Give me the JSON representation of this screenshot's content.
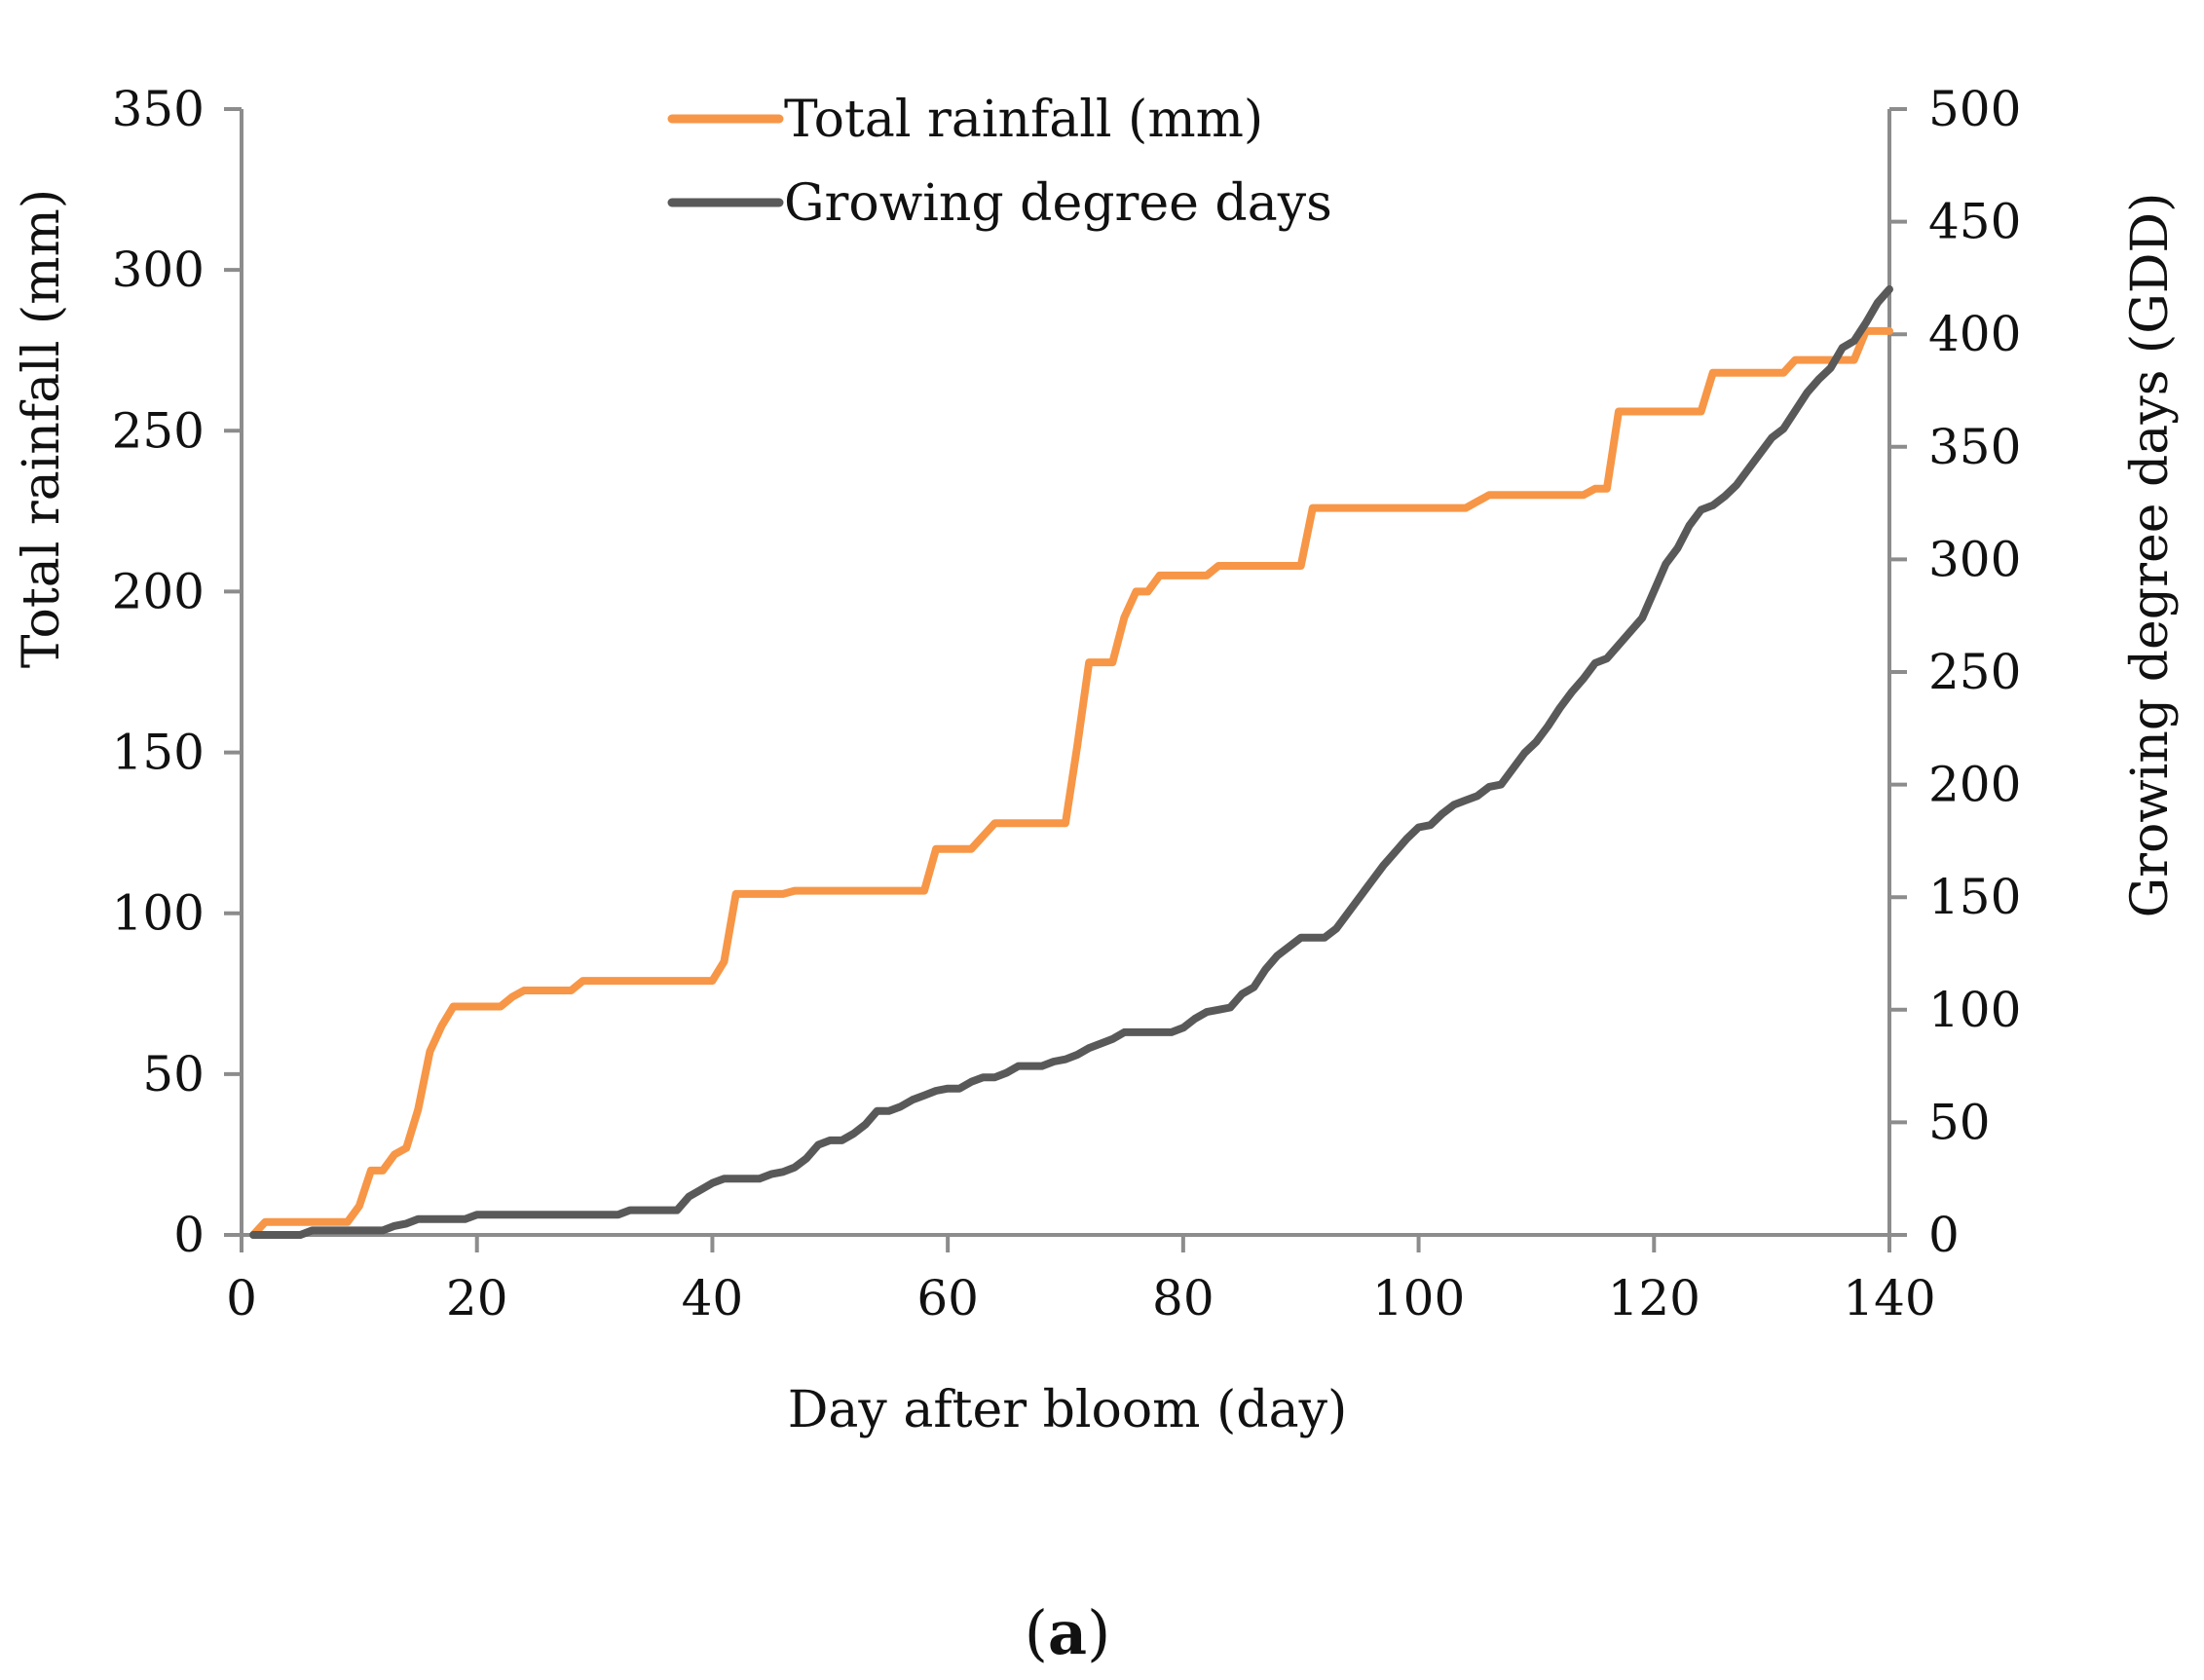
{
  "chart_data": {
    "type": "line",
    "xlabel": "Day after bloom (day)",
    "y1label": "Total rainfall (mm)",
    "y2label": "Growing degree days (GDD)",
    "xlim": [
      0,
      140
    ],
    "y1lim": [
      0,
      350
    ],
    "y2lim": [
      0,
      500
    ],
    "xticks": [
      0,
      20,
      40,
      60,
      80,
      100,
      120,
      140
    ],
    "y1ticks": [
      0,
      50,
      100,
      150,
      200,
      250,
      300,
      350
    ],
    "y2ticks": [
      0,
      50,
      100,
      150,
      200,
      250,
      300,
      350,
      400,
      450,
      500
    ],
    "grid": false,
    "legend": "top-center",
    "caption": {
      "open": "(",
      "letter": "a",
      "close": ")"
    },
    "series": [
      {
        "name": "Total rainfall (mm)",
        "axis": "left",
        "color": "#F79646",
        "points": [
          [
            1,
            0
          ],
          [
            2,
            4
          ],
          [
            3,
            4
          ],
          [
            9,
            4
          ],
          [
            10,
            9
          ],
          [
            11,
            20
          ],
          [
            12,
            20
          ],
          [
            13,
            25
          ],
          [
            14,
            27
          ],
          [
            15,
            39
          ],
          [
            16,
            57
          ],
          [
            17,
            65
          ],
          [
            18,
            71
          ],
          [
            22,
            71
          ],
          [
            23,
            74
          ],
          [
            24,
            76
          ],
          [
            28,
            76
          ],
          [
            29,
            79
          ],
          [
            40,
            79
          ],
          [
            41,
            85
          ],
          [
            42,
            106
          ],
          [
            46,
            106
          ],
          [
            47,
            107
          ],
          [
            58,
            107
          ],
          [
            59,
            120
          ],
          [
            62,
            120
          ],
          [
            63,
            124
          ],
          [
            64,
            128
          ],
          [
            70,
            128
          ],
          [
            71,
            152
          ],
          [
            72,
            178
          ],
          [
            74,
            178
          ],
          [
            75,
            192
          ],
          [
            76,
            200
          ],
          [
            77,
            200
          ],
          [
            78,
            205
          ],
          [
            82,
            205
          ],
          [
            83,
            208
          ],
          [
            90,
            208
          ],
          [
            91,
            226
          ],
          [
            104,
            226
          ],
          [
            105,
            228
          ],
          [
            106,
            230
          ],
          [
            114,
            230
          ],
          [
            115,
            232
          ],
          [
            116,
            232
          ],
          [
            117,
            256
          ],
          [
            124,
            256
          ],
          [
            125,
            268
          ],
          [
            131,
            268
          ],
          [
            132,
            272
          ],
          [
            137,
            272
          ],
          [
            138,
            281
          ],
          [
            140,
            281
          ]
        ]
      },
      {
        "name": "Growing degree days",
        "axis": "right",
        "color": "#595959",
        "points": [
          [
            1,
            0
          ],
          [
            5,
            0
          ],
          [
            6,
            2
          ],
          [
            12,
            2
          ],
          [
            13,
            4
          ],
          [
            14,
            5
          ],
          [
            15,
            7
          ],
          [
            19,
            7
          ],
          [
            20,
            9
          ],
          [
            32,
            9
          ],
          [
            33,
            11
          ],
          [
            37,
            11
          ],
          [
            38,
            17
          ],
          [
            39,
            20
          ],
          [
            40,
            23
          ],
          [
            41,
            25
          ],
          [
            44,
            25
          ],
          [
            45,
            27
          ],
          [
            46,
            28
          ],
          [
            47,
            30
          ],
          [
            48,
            34
          ],
          [
            49,
            40
          ],
          [
            50,
            42
          ],
          [
            51,
            42
          ],
          [
            52,
            45
          ],
          [
            53,
            49
          ],
          [
            54,
            55
          ],
          [
            55,
            55
          ],
          [
            56,
            57
          ],
          [
            57,
            60
          ],
          [
            58,
            62
          ],
          [
            59,
            64
          ],
          [
            60,
            65
          ],
          [
            61,
            65
          ],
          [
            62,
            68
          ],
          [
            63,
            70
          ],
          [
            64,
            70
          ],
          [
            65,
            72
          ],
          [
            66,
            75
          ],
          [
            68,
            75
          ],
          [
            69,
            77
          ],
          [
            70,
            78
          ],
          [
            71,
            80
          ],
          [
            72,
            83
          ],
          [
            73,
            85
          ],
          [
            74,
            87
          ],
          [
            75,
            90
          ],
          [
            79,
            90
          ],
          [
            80,
            92
          ],
          [
            81,
            96
          ],
          [
            82,
            99
          ],
          [
            83,
            100
          ],
          [
            84,
            101
          ],
          [
            85,
            107
          ],
          [
            86,
            110
          ],
          [
            87,
            118
          ],
          [
            88,
            124
          ],
          [
            89,
            128
          ],
          [
            90,
            132
          ],
          [
            92,
            132
          ],
          [
            93,
            136
          ],
          [
            94,
            143
          ],
          [
            95,
            150
          ],
          [
            96,
            157
          ],
          [
            97,
            164
          ],
          [
            98,
            170
          ],
          [
            99,
            176
          ],
          [
            100,
            181
          ],
          [
            101,
            182
          ],
          [
            102,
            187
          ],
          [
            103,
            191
          ],
          [
            104,
            193
          ],
          [
            105,
            195
          ],
          [
            106,
            199
          ],
          [
            107,
            200
          ],
          [
            108,
            207
          ],
          [
            109,
            214
          ],
          [
            110,
            219
          ],
          [
            111,
            226
          ],
          [
            112,
            234
          ],
          [
            113,
            241
          ],
          [
            114,
            247
          ],
          [
            115,
            254
          ],
          [
            116,
            256
          ],
          [
            117,
            262
          ],
          [
            118,
            268
          ],
          [
            119,
            274
          ],
          [
            120,
            286
          ],
          [
            121,
            298
          ],
          [
            122,
            305
          ],
          [
            123,
            315
          ],
          [
            124,
            322
          ],
          [
            125,
            324
          ],
          [
            126,
            328
          ],
          [
            127,
            333
          ],
          [
            128,
            340
          ],
          [
            129,
            347
          ],
          [
            130,
            354
          ],
          [
            131,
            358
          ],
          [
            132,
            366
          ],
          [
            133,
            374
          ],
          [
            134,
            380
          ],
          [
            135,
            385
          ],
          [
            136,
            394
          ],
          [
            137,
            397
          ],
          [
            138,
            405
          ],
          [
            139,
            414
          ],
          [
            140,
            420
          ]
        ]
      }
    ]
  }
}
